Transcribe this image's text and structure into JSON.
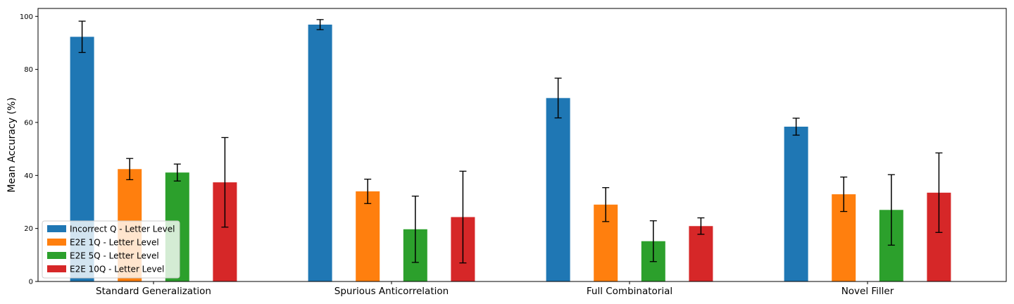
{
  "chart_data": {
    "type": "bar",
    "ylabel": "Mean Accuracy (%)",
    "xlabel": "",
    "ylim": [
      0,
      103
    ],
    "yticks": [
      "0",
      "20",
      "40",
      "60",
      "80",
      "100"
    ],
    "categories": [
      "Standard Generalization",
      "Spurious Anticorrelation",
      "Full Combinatorial",
      "Novel Filler"
    ],
    "legend_position": "lower-left",
    "grid": false,
    "series": [
      {
        "name": "Incorrect Q - Letter Level",
        "color": "#1f77b4",
        "values": [
          92.3,
          96.9,
          69.2,
          58.4
        ],
        "errors": [
          5.9,
          1.9,
          7.5,
          3.2
        ]
      },
      {
        "name": "E2E 1Q - Letter Level",
        "color": "#ff7f0e",
        "values": [
          42.4,
          34.0,
          29.0,
          32.9
        ],
        "errors": [
          4.0,
          4.6,
          6.4,
          6.5
        ]
      },
      {
        "name": "E2E 5Q - Letter Level",
        "color": "#2ca02c",
        "values": [
          41.1,
          19.7,
          15.2,
          27.0
        ],
        "errors": [
          3.2,
          12.5,
          7.7,
          13.3
        ]
      },
      {
        "name": "E2E 10Q - Letter Level",
        "color": "#d62728",
        "values": [
          37.4,
          24.3,
          20.9,
          33.5
        ],
        "errors": [
          16.9,
          17.3,
          3.1,
          15.0
        ]
      }
    ]
  }
}
